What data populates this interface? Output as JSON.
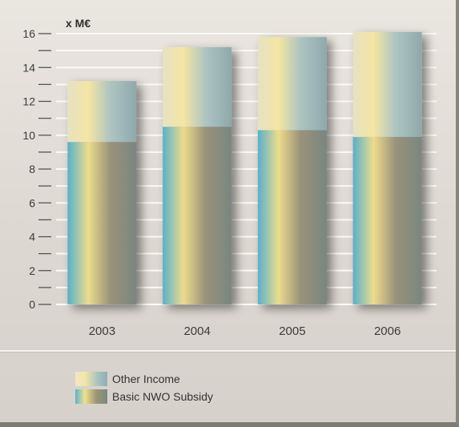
{
  "chart_data": {
    "type": "bar",
    "stacked": true,
    "unit_label": "x M€",
    "categories": [
      "2003",
      "2004",
      "2005",
      "2006"
    ],
    "series": [
      {
        "name": "Basic NWO Subsidy",
        "values": [
          9.6,
          10.5,
          10.3,
          9.9
        ]
      },
      {
        "name": "Other Income",
        "values": [
          3.6,
          4.7,
          5.5,
          6.2
        ]
      }
    ],
    "ylim": [
      0,
      16
    ],
    "yticks": [
      "0",
      "2",
      "4",
      "6",
      "8",
      "10",
      "12",
      "14",
      "16"
    ],
    "grid": true,
    "legend_position": "bottom-left"
  },
  "legend": {
    "items": [
      {
        "label": "Other Income",
        "key": "other"
      },
      {
        "label": "Basic NWO Subsidy",
        "key": "subsidy"
      }
    ]
  }
}
